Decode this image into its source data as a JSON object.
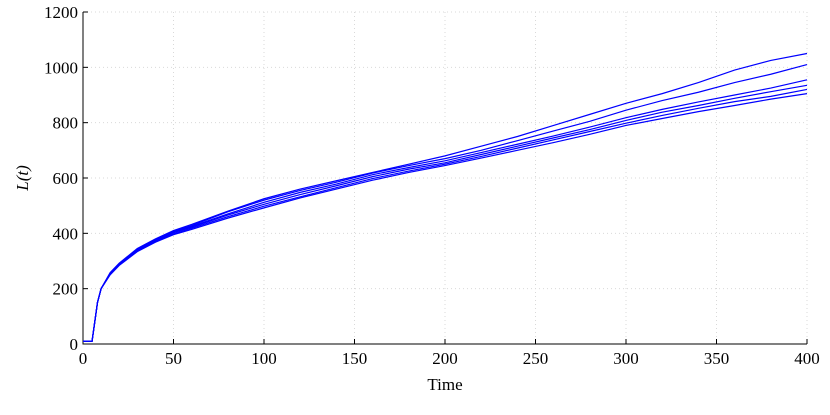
{
  "chart_data": {
    "type": "line",
    "xlabel": "Time",
    "ylabel": "L(t)",
    "x": [
      0,
      5,
      8,
      10,
      15,
      20,
      30,
      40,
      50,
      60,
      80,
      100,
      120,
      140,
      160,
      180,
      200,
      220,
      240,
      260,
      280,
      300,
      320,
      340,
      360,
      380,
      400
    ],
    "series": [
      {
        "color": "#0000ff",
        "values": [
          10,
          10,
          150,
          200,
          258,
          292,
          345,
          380,
          410,
          432,
          480,
          525,
          560,
          590,
          620,
          650,
          680,
          715,
          750,
          790,
          830,
          870,
          905,
          945,
          990,
          1025,
          1050
        ]
      },
      {
        "color": "#0000ff",
        "values": [
          10,
          10,
          150,
          200,
          256,
          290,
          342,
          378,
          408,
          428,
          478,
          520,
          555,
          585,
          618,
          645,
          670,
          700,
          735,
          770,
          805,
          845,
          880,
          910,
          945,
          975,
          1010
        ]
      },
      {
        "color": "#0000ff",
        "values": [
          10,
          10,
          150,
          200,
          255,
          290,
          340,
          375,
          405,
          425,
          470,
          512,
          548,
          578,
          612,
          638,
          662,
          692,
          722,
          752,
          784,
          818,
          848,
          875,
          900,
          925,
          955
        ]
      },
      {
        "color": "#0000ff",
        "values": [
          10,
          10,
          150,
          200,
          254,
          288,
          338,
          372,
          402,
          422,
          466,
          505,
          540,
          572,
          605,
          632,
          655,
          685,
          715,
          745,
          775,
          808,
          838,
          862,
          888,
          912,
          935
        ]
      },
      {
        "color": "#0000ff",
        "values": [
          10,
          10,
          150,
          200,
          252,
          286,
          336,
          370,
          398,
          418,
          460,
          498,
          532,
          565,
          598,
          625,
          650,
          678,
          708,
          738,
          768,
          798,
          826,
          852,
          876,
          895,
          920
        ]
      },
      {
        "color": "#0000ff",
        "values": [
          10,
          10,
          150,
          200,
          250,
          284,
          334,
          368,
          395,
          414,
          455,
          492,
          528,
          560,
          592,
          620,
          645,
          672,
          700,
          728,
          758,
          790,
          815,
          840,
          862,
          885,
          905
        ]
      }
    ],
    "xlim": [
      0,
      400
    ],
    "xticks": [
      0,
      50,
      100,
      150,
      200,
      250,
      300,
      350,
      400
    ],
    "ylim": [
      0,
      1200
    ],
    "yticks": [
      0,
      200,
      400,
      600,
      800,
      1000,
      1200
    ],
    "grid": true
  }
}
